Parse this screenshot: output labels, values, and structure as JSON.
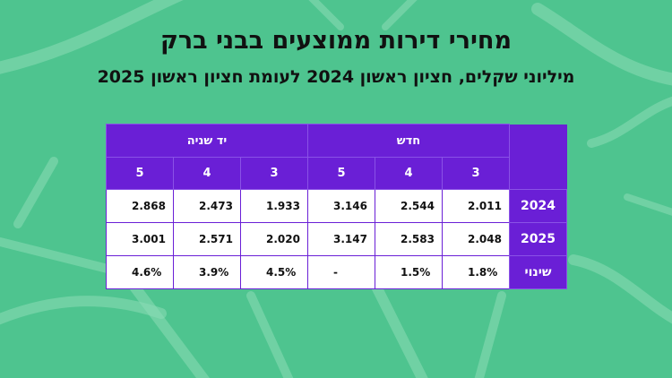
{
  "title": "מחירי דירות ממוצעים בבני ברק",
  "subtitle": "מיליוני שקלים, חציון ראשון 2024 לעומת חציון ראשון 2025",
  "table": {
    "group_new": "חדש",
    "group_used": "יד שניה",
    "rooms_new": [
      "3",
      "4",
      "5"
    ],
    "rooms_used": [
      "3",
      "4",
      "5"
    ],
    "rows": [
      {
        "label": "2024",
        "new": [
          "2.011",
          "2.544",
          "3.146"
        ],
        "used": [
          "1.933",
          "2.473",
          "2.868"
        ]
      },
      {
        "label": "2025",
        "new": [
          "2.048",
          "2.583",
          "3.147"
        ],
        "used": [
          "2.020",
          "2.571",
          "3.001"
        ]
      },
      {
        "label": "שינוי",
        "new": [
          "1.8%",
          "1.5%",
          "-"
        ],
        "used": [
          "4.5%",
          "3.9%",
          "4.6%"
        ]
      }
    ]
  },
  "colors": {
    "background": "#4ec48f",
    "header": "#6a1fd6",
    "cell": "#ffffff",
    "text": "#111111"
  }
}
